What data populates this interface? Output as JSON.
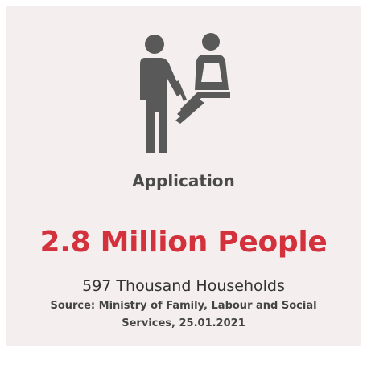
{
  "card": {
    "icon": "application-desk-icon",
    "label": "Application",
    "headline": "2.8 Million People",
    "subheadline": "597 Thousand Households",
    "source": "Source: Ministry of Family, Labour and Social Services, 25.01.2021"
  },
  "colors": {
    "background": "#f4eeee",
    "accent": "#d3313b",
    "icon": "#595959",
    "text": "#333333"
  }
}
